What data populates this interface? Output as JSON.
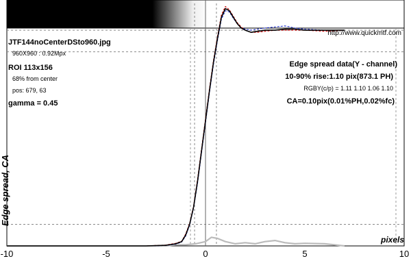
{
  "header": {
    "filename": "JTF144noCenterDSto960.jpg",
    "image_size": "960X960 : 0.92Mpx",
    "roi": "ROI 113x156",
    "from_center": "68% from center",
    "pos": "pos: 679, 63",
    "gamma": "gamma = 0.45",
    "url": "http://www.quickmtf.com"
  },
  "stats": {
    "title": "Edge spread data(Y - channel)",
    "rise": "10-90% rise:1.10 pix(873.1 PH)",
    "rgby": "RGBY(c/p) = 1.11 1.10 1.06 1.10",
    "ca": "CA=0.10pix(0.01%PH,0.02%fc)"
  },
  "chart_data": {
    "type": "line",
    "ylabel": "Edge spread, CA",
    "xlabel": "pixels",
    "xlim": [
      -10,
      10
    ],
    "ylim": [
      0,
      1.14
    ],
    "x_ticks": [
      "-10",
      "-5",
      "0",
      "5",
      "10"
    ],
    "reference_lines": {
      "levels": [
        0.1,
        0.9,
        1.0
      ],
      "rise_markers_x": [
        -0.55,
        0.55
      ]
    },
    "series": [
      {
        "color": "#000000",
        "x": [
          -10,
          -3,
          -2,
          -1.5,
          -1.2,
          -1.0,
          -0.8,
          -0.6,
          -0.4,
          -0.2,
          0,
          0.2,
          0.4,
          0.6,
          0.8,
          1.0,
          1.2,
          1.4,
          1.6,
          1.8,
          2.0,
          2.3,
          2.6,
          3.0,
          3.5,
          4.0,
          4.5,
          5.0,
          6.0,
          7.0
        ],
        "values": [
          0.0,
          0.0,
          0.003,
          0.01,
          0.02,
          0.05,
          0.1,
          0.18,
          0.3,
          0.44,
          0.58,
          0.72,
          0.85,
          0.96,
          1.06,
          1.1,
          1.09,
          1.06,
          1.03,
          1.01,
          1.0,
          0.99,
          0.995,
          1.0,
          1.0,
          1.005,
          1.005,
          1.0,
          1.0,
          1.0
        ]
      },
      {
        "color": "#cc0000",
        "x": [
          -10,
          -3,
          -2,
          -1.5,
          -1.2,
          -1.0,
          -0.8,
          -0.6,
          -0.4,
          -0.2,
          0,
          0.2,
          0.4,
          0.6,
          0.8,
          1.0,
          1.2,
          1.4,
          1.6,
          1.8,
          2.0,
          2.3,
          2.6,
          3.0,
          3.5,
          4.0,
          4.5,
          5.0,
          6.0,
          7.0
        ],
        "values": [
          0.0,
          0.0,
          0.004,
          0.012,
          0.022,
          0.055,
          0.105,
          0.185,
          0.31,
          0.45,
          0.59,
          0.73,
          0.86,
          0.97,
          1.07,
          1.11,
          1.095,
          1.065,
          1.035,
          1.015,
          1.0,
          0.99,
          0.99,
          0.995,
          1.0,
          1.0,
          1.0,
          1.0,
          0.995,
          1.0
        ]
      },
      {
        "color": "#2233cc",
        "x": [
          -10,
          -3,
          -2,
          -1.5,
          -1.2,
          -1.0,
          -0.8,
          -0.6,
          -0.4,
          -0.2,
          0,
          0.2,
          0.4,
          0.6,
          0.8,
          1.0,
          1.2,
          1.4,
          1.6,
          1.8,
          2.0,
          2.3,
          2.6,
          3.0,
          3.5,
          4.0,
          4.5,
          5.0,
          6.0,
          7.0
        ],
        "values": [
          0.0,
          0.0,
          0.002,
          0.008,
          0.018,
          0.045,
          0.095,
          0.175,
          0.29,
          0.43,
          0.57,
          0.71,
          0.84,
          0.95,
          1.05,
          1.09,
          1.085,
          1.055,
          1.03,
          1.01,
          1.005,
          1.0,
          1.005,
          1.01,
          1.015,
          1.02,
          1.01,
          1.005,
          1.0,
          1.0
        ]
      },
      {
        "color": "#bbbbbb",
        "x": [
          -10,
          -2,
          -1.5,
          -1.0,
          -0.5,
          0,
          0.3,
          0.6,
          1.0,
          1.5,
          2.0,
          2.5,
          3.0,
          3.5,
          4.0,
          4.5,
          5.0,
          6.0,
          7.0
        ],
        "values": [
          0.0,
          0.0,
          0.005,
          0.005,
          0.01,
          0.02,
          0.04,
          0.035,
          0.02,
          0.01,
          0.015,
          0.01,
          0.02,
          0.025,
          0.015,
          0.01,
          0.012,
          0.01,
          0.0
        ]
      }
    ]
  },
  "colors": {
    "background": "#ffffff",
    "frame": "#000000",
    "grid": "#999999",
    "edge_dark": "#000000",
    "edge_light": "#ffffff"
  }
}
